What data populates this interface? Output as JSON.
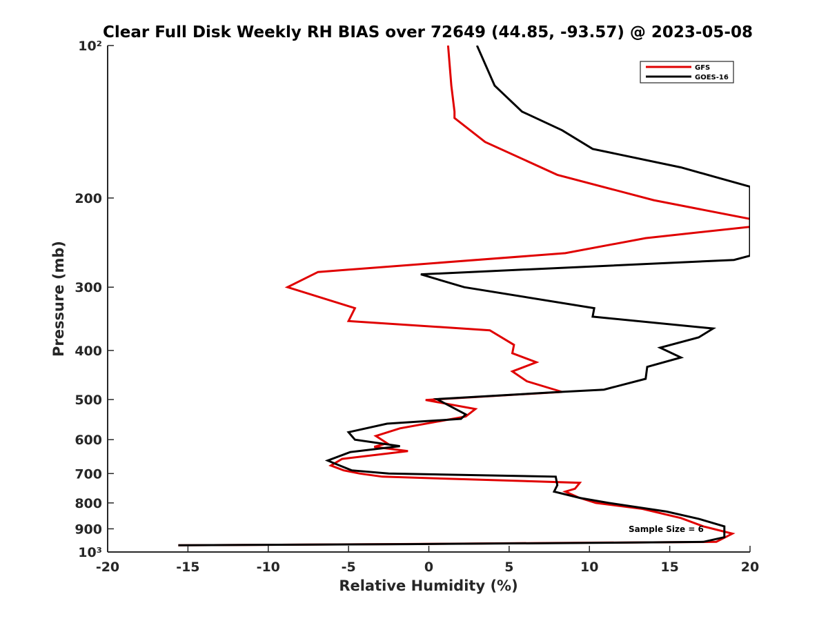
{
  "chart_data": {
    "type": "line",
    "title": "Clear Full Disk Weekly RH BIAS over 72649 (44.85, -93.57) @ 2023-05-08",
    "xlabel": "Relative Humidity (%)",
    "ylabel": "Pressure (mb)",
    "xlim": [
      -20,
      20
    ],
    "ylim": [
      100,
      1000
    ],
    "y_scale": "log",
    "y_reversed": true,
    "x_ticks": [
      -20,
      -15,
      -10,
      -5,
      0,
      5,
      10,
      15,
      20
    ],
    "x_tick_labels": [
      "-20",
      "-15",
      "-10",
      "-5",
      "0",
      "5",
      "10",
      "15",
      "20"
    ],
    "y_ticks": [
      100,
      200,
      300,
      400,
      500,
      600,
      700,
      800,
      900,
      1000
    ],
    "y_tick_labels": [
      "10²",
      "200",
      "300",
      "400",
      "500",
      "600",
      "700",
      "800",
      "900",
      "10³"
    ],
    "grid": false,
    "legend_position": "top-right",
    "annotation": "Sample Size = 6",
    "series": [
      {
        "name": "GFS",
        "color": "#e00000",
        "x": [
          1.2,
          1.4,
          1.6,
          1.6,
          3.5,
          8,
          14,
          20,
          20,
          13.5,
          8.5,
          -6.9,
          -8.8,
          -4.6,
          -5,
          3.8,
          5.3,
          5.2,
          6.7,
          5.2,
          6.1,
          8.3,
          -0.2,
          2.9,
          2.3,
          -1.8,
          -3.3,
          -2.6,
          -3.4,
          -1.3,
          -5.4,
          -6.1,
          -5.3,
          -4.3,
          -2.9,
          9.4,
          9.1,
          8.5,
          9.3,
          10.4,
          13.3,
          15.7,
          17.1,
          18.9,
          17.9,
          7.2,
          -2.6,
          -15.6
        ],
        "y": [
          100,
          120,
          135,
          139,
          155,
          180,
          202,
          220,
          228,
          240,
          257,
          280,
          300,
          330,
          350,
          365,
          390,
          405,
          422,
          440,
          460,
          483,
          501,
          522,
          540,
          570,
          590,
          610,
          620,
          632,
          655,
          675,
          690,
          700,
          710,
          730,
          750,
          760,
          780,
          800,
          822,
          857,
          890,
          920,
          955,
          960,
          965,
          970
        ]
      },
      {
        "name": "GOES-16",
        "color": "#000000",
        "x": [
          3.0,
          4.1,
          5.8,
          8.3,
          10.2,
          15.7,
          20,
          20,
          19,
          -0.5,
          2.2,
          10.3,
          10.2,
          17.7,
          16.8,
          14.4,
          15.7,
          13.6,
          13.5,
          10.9,
          8.2,
          0.5,
          2.3,
          2.0,
          -2.6,
          -5,
          -4.6,
          -1.8,
          -4.9,
          -6.3,
          -5.7,
          -4.8,
          -2.5,
          7.9,
          8,
          7.8,
          9.4,
          11.2,
          14.8,
          16.8,
          18.4,
          18.4,
          17.1,
          8.8,
          -1.3,
          -15.6
        ],
        "y": [
          100,
          120,
          135,
          147,
          160,
          174,
          190,
          260,
          265,
          283,
          300,
          330,
          343,
          362,
          377,
          395,
          413,
          431,
          455,
          478,
          483,
          499,
          535,
          546,
          558,
          580,
          600,
          618,
          635,
          660,
          672,
          690,
          700,
          710,
          738,
          760,
          782,
          800,
          832,
          860,
          890,
          935,
          955,
          960,
          965,
          970
        ]
      }
    ]
  }
}
